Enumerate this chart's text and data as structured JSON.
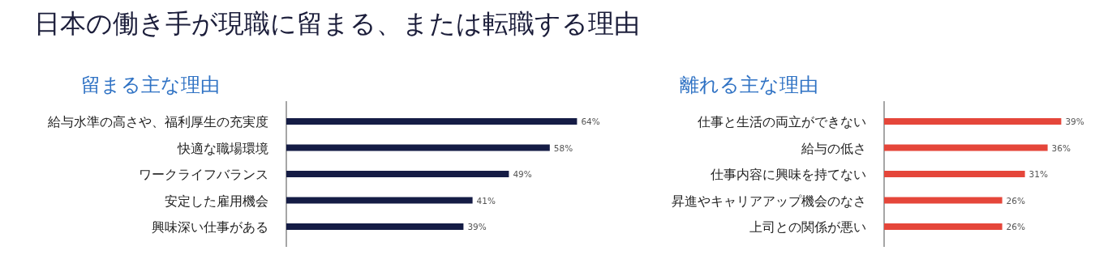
{
  "chart_data": [
    {
      "type": "bar",
      "orientation": "horizontal",
      "title": "日本の働き手が現職に留まる、または転職する理由",
      "subtitle": "留まる主な理由",
      "categories": [
        "給与水準の高さや、福利厚生の充実度",
        "快適な職場環境",
        "ワークライフバランス",
        "安定した雇用機会",
        "興味深い仕事がある"
      ],
      "values": [
        64,
        58,
        49,
        41,
        39
      ],
      "color": "#151c45",
      "value_labels": [
        "64%",
        "58%",
        "49%",
        "41%",
        "39%"
      ]
    },
    {
      "type": "bar",
      "orientation": "horizontal",
      "subtitle": "離れる主な理由",
      "categories": [
        "仕事と生活の両立ができない",
        "給与の低さ",
        "仕事内容に興味を持てない",
        "昇進やキャリアアップ機会のなさ",
        "上司との関係が悪い"
      ],
      "values": [
        39,
        36,
        31,
        26,
        26
      ],
      "color": "#e5463a",
      "value_labels": [
        "39%",
        "36%",
        "31%",
        "26%",
        "26%"
      ]
    }
  ]
}
